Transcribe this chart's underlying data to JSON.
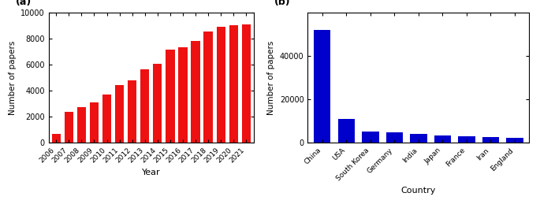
{
  "left_years": [
    "2006",
    "2007",
    "2008",
    "2009",
    "2010",
    "2011",
    "2012",
    "2013",
    "2014",
    "2015",
    "2016",
    "2017",
    "2018",
    "2019",
    "2020",
    "2021"
  ],
  "left_values": [
    700,
    2400,
    2750,
    3100,
    3700,
    4400,
    4800,
    5600,
    6050,
    7150,
    7300,
    7800,
    8550,
    8900,
    9000,
    9050
  ],
  "left_color": "#EE1111",
  "left_xlabel": "Year",
  "left_ylabel": "Number of papers",
  "left_ylim": [
    0,
    10000
  ],
  "left_yticks": [
    0,
    2000,
    4000,
    6000,
    8000,
    10000
  ],
  "left_label": "(a)",
  "right_countries": [
    "China",
    "USA",
    "South Korea",
    "Germany",
    "India",
    "Japan",
    "France",
    "Iran",
    "England"
  ],
  "right_values": [
    52000,
    11000,
    5000,
    4700,
    4000,
    3500,
    2900,
    2700,
    2400
  ],
  "right_color": "#0000CC",
  "right_xlabel": "Country",
  "right_ylabel": "Number of papers",
  "right_ylim": [
    0,
    60000
  ],
  "right_yticks": [
    0,
    20000,
    40000
  ],
  "right_label": "(b)"
}
